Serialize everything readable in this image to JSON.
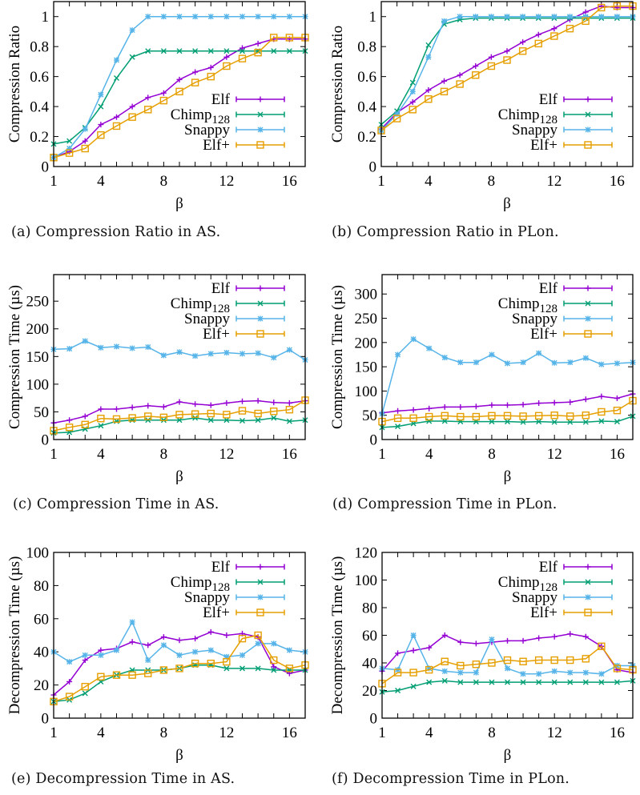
{
  "series_styles": [
    {
      "name": "Elf",
      "color": "#9400d3",
      "marker": "plus"
    },
    {
      "name": "Chimp128",
      "label_main": "Chimp",
      "label_sub": "128",
      "color": "#009e73",
      "marker": "cross"
    },
    {
      "name": "Snappy",
      "color": "#56b4e9",
      "marker": "star"
    },
    {
      "name": "Elf+",
      "color": "#e69f00",
      "marker": "square"
    }
  ],
  "chart_data": [
    {
      "id": "a",
      "type": "line",
      "caption": "(a) Compression Ratio in AS.",
      "title": "",
      "xlabel": "β",
      "ylabel": "Compression Ratio",
      "x": [
        1,
        2,
        3,
        4,
        5,
        6,
        7,
        8,
        9,
        10,
        11,
        12,
        13,
        14,
        15,
        16,
        17
      ],
      "xlim": [
        1,
        17
      ],
      "xticks": [
        1,
        4,
        8,
        12,
        16
      ],
      "ylim": [
        0,
        1.1
      ],
      "yticks": [
        0,
        0.2,
        0.4,
        0.6,
        0.8,
        1
      ],
      "ytick_labels": [
        "0",
        "0.2",
        "0.4",
        "0.6",
        "0.8",
        "1"
      ],
      "legend": "right-middle",
      "grid": false,
      "series": [
        {
          "name": "Elf",
          "values": [
            0.06,
            0.1,
            0.17,
            0.28,
            0.33,
            0.4,
            0.46,
            0.49,
            0.58,
            0.63,
            0.66,
            0.73,
            0.79,
            0.82,
            0.85,
            0.85,
            0.85
          ]
        },
        {
          "name": "Chimp128",
          "values": [
            0.15,
            0.17,
            0.26,
            0.4,
            0.59,
            0.73,
            0.77,
            0.77,
            0.77,
            0.77,
            0.77,
            0.77,
            0.77,
            0.77,
            0.77,
            0.77,
            0.77
          ]
        },
        {
          "name": "Snappy",
          "values": [
            0.06,
            0.12,
            0.25,
            0.48,
            0.71,
            0.91,
            1.0,
            1.0,
            1.0,
            1.0,
            1.0,
            1.0,
            1.0,
            1.0,
            1.0,
            1.0,
            1.0
          ]
        },
        {
          "name": "Elf+",
          "values": [
            0.06,
            0.09,
            0.12,
            0.21,
            0.27,
            0.33,
            0.38,
            0.44,
            0.5,
            0.56,
            0.6,
            0.67,
            0.72,
            0.76,
            0.86,
            0.86,
            0.86
          ]
        }
      ]
    },
    {
      "id": "b",
      "type": "line",
      "caption": "(b) Compression Ratio in PLon.",
      "title": "",
      "xlabel": "β",
      "ylabel": "Compression Ratio",
      "x": [
        1,
        2,
        3,
        4,
        5,
        6,
        7,
        8,
        9,
        10,
        11,
        12,
        13,
        14,
        15,
        16,
        17
      ],
      "xlim": [
        1,
        17
      ],
      "xticks": [
        1,
        4,
        8,
        12,
        16
      ],
      "ylim": [
        0,
        1.1
      ],
      "yticks": [
        0,
        0.2,
        0.4,
        0.6,
        0.8,
        1
      ],
      "ytick_labels": [
        "0",
        "0.2",
        "0.4",
        "0.6",
        "0.8",
        "1"
      ],
      "legend": "right-middle",
      "grid": false,
      "series": [
        {
          "name": "Elf",
          "values": [
            0.25,
            0.36,
            0.43,
            0.51,
            0.57,
            0.61,
            0.67,
            0.73,
            0.77,
            0.83,
            0.88,
            0.92,
            0.98,
            1.03,
            1.07,
            1.06,
            1.06
          ]
        },
        {
          "name": "Chimp128",
          "values": [
            0.28,
            0.37,
            0.56,
            0.81,
            0.95,
            0.98,
            0.99,
            0.99,
            0.99,
            0.99,
            0.99,
            0.99,
            0.99,
            0.99,
            0.99,
            0.99,
            0.99
          ]
        },
        {
          "name": "Snappy",
          "values": [
            0.24,
            0.35,
            0.5,
            0.73,
            0.97,
            1.0,
            1.0,
            1.0,
            1.0,
            1.0,
            1.0,
            1.0,
            1.0,
            1.0,
            1.0,
            1.0,
            1.0
          ]
        },
        {
          "name": "Elf+",
          "values": [
            0.24,
            0.32,
            0.38,
            0.45,
            0.5,
            0.55,
            0.61,
            0.67,
            0.71,
            0.77,
            0.82,
            0.87,
            0.92,
            0.97,
            1.06,
            1.07,
            1.07
          ]
        }
      ]
    },
    {
      "id": "c",
      "type": "line",
      "caption": "(c) Compression Time in AS.",
      "title": "",
      "xlabel": "β",
      "ylabel": "Compression Time (µs)",
      "x": [
        1,
        2,
        3,
        4,
        5,
        6,
        7,
        8,
        9,
        10,
        11,
        12,
        13,
        14,
        15,
        16,
        17
      ],
      "xlim": [
        1,
        17
      ],
      "xticks": [
        1,
        4,
        8,
        12,
        16
      ],
      "ylim": [
        0,
        298
      ],
      "yticks": [
        0,
        50,
        100,
        150,
        200,
        250
      ],
      "ytick_labels": [
        "0",
        "50",
        "100",
        "150",
        "200",
        "250"
      ],
      "legend": "top-right",
      "grid": false,
      "series": [
        {
          "name": "Elf",
          "values": [
            30,
            35,
            42,
            55,
            55,
            58,
            61,
            59,
            68,
            64,
            62,
            66,
            69,
            70,
            67,
            66,
            70
          ]
        },
        {
          "name": "Chimp128",
          "values": [
            12,
            13,
            19,
            25,
            33,
            35,
            35,
            35,
            35,
            39,
            35,
            35,
            34,
            35,
            39,
            33,
            35
          ]
        },
        {
          "name": "Snappy",
          "values": [
            163,
            164,
            178,
            166,
            168,
            165,
            167,
            152,
            158,
            151,
            155,
            157,
            155,
            156,
            148,
            162,
            144
          ]
        },
        {
          "name": "Elf+",
          "values": [
            16,
            22,
            27,
            38,
            37,
            39,
            42,
            40,
            45,
            46,
            47,
            45,
            52,
            47,
            51,
            54,
            71
          ]
        }
      ]
    },
    {
      "id": "d",
      "type": "line",
      "caption": "(d) Compression Time in PLon.",
      "title": "",
      "xlabel": "β",
      "ylabel": "Compression Time (µs)",
      "x": [
        1,
        2,
        3,
        4,
        5,
        6,
        7,
        8,
        9,
        10,
        11,
        12,
        13,
        14,
        15,
        16,
        17
      ],
      "xlim": [
        1,
        17
      ],
      "xticks": [
        1,
        4,
        8,
        12,
        16
      ],
      "ylim": [
        0,
        340
      ],
      "yticks": [
        0,
        50,
        100,
        150,
        200,
        250,
        300
      ],
      "ytick_labels": [
        "0",
        "50",
        "100",
        "150",
        "200",
        "250",
        "300"
      ],
      "legend": "top-right",
      "grid": false,
      "series": [
        {
          "name": "Elf",
          "values": [
            55,
            59,
            61,
            64,
            67,
            67,
            68,
            71,
            71,
            72,
            75,
            76,
            77,
            83,
            89,
            85,
            94
          ]
        },
        {
          "name": "Chimp128",
          "values": [
            25,
            27,
            33,
            38,
            38,
            37,
            37,
            37,
            37,
            36,
            37,
            36,
            36,
            36,
            38,
            37,
            48
          ]
        },
        {
          "name": "Snappy",
          "values": [
            53,
            175,
            207,
            188,
            169,
            159,
            159,
            175,
            157,
            159,
            178,
            158,
            159,
            168,
            155,
            157,
            159
          ]
        },
        {
          "name": "Elf+",
          "values": [
            37,
            44,
            44,
            47,
            49,
            47,
            47,
            49,
            49,
            48,
            49,
            50,
            48,
            50,
            57,
            60,
            80
          ]
        }
      ]
    },
    {
      "id": "e",
      "type": "line",
      "caption": "(e) Decompression Time in AS.",
      "title": "",
      "xlabel": "β",
      "ylabel": "Decompression Time (µs)",
      "x": [
        1,
        2,
        3,
        4,
        5,
        6,
        7,
        8,
        9,
        10,
        11,
        12,
        13,
        14,
        15,
        16,
        17
      ],
      "xlim": [
        1,
        17
      ],
      "xticks": [
        1,
        4,
        8,
        12,
        16
      ],
      "ylim": [
        0,
        100
      ],
      "yticks": [
        0,
        20,
        40,
        60,
        80,
        100
      ],
      "ytick_labels": [
        "0",
        "20",
        "40",
        "60",
        "80",
        "100"
      ],
      "legend": "top-right",
      "grid": false,
      "series": [
        {
          "name": "Elf",
          "values": [
            14,
            22,
            35,
            41,
            42,
            46,
            44,
            49,
            47,
            48,
            52,
            50,
            51,
            49,
            31,
            27,
            29
          ]
        },
        {
          "name": "Chimp128",
          "values": [
            10,
            11,
            15,
            22,
            26,
            29,
            29,
            29,
            30,
            32,
            32,
            30,
            30,
            30,
            29,
            29,
            29
          ]
        },
        {
          "name": "Snappy",
          "values": [
            40,
            34,
            38,
            38,
            41,
            58,
            35,
            44,
            38,
            40,
            41,
            37,
            38,
            45,
            45,
            41,
            40
          ]
        },
        {
          "name": "Elf+",
          "values": [
            10,
            13,
            19,
            25,
            26,
            26,
            27,
            29,
            30,
            33,
            33,
            34,
            48,
            50,
            35,
            30,
            32
          ]
        }
      ]
    },
    {
      "id": "f",
      "type": "line",
      "caption": "(f) Decompression Time in PLon.",
      "title": "",
      "xlabel": "β",
      "ylabel": "Decompression Time (µs)",
      "x": [
        1,
        2,
        3,
        4,
        5,
        6,
        7,
        8,
        9,
        10,
        11,
        12,
        13,
        14,
        15,
        16,
        17
      ],
      "xlim": [
        1,
        17
      ],
      "xticks": [
        1,
        4,
        8,
        12,
        16
      ],
      "ylim": [
        0,
        120
      ],
      "yticks": [
        0,
        20,
        40,
        60,
        80,
        100,
        120
      ],
      "ytick_labels": [
        "0",
        "20",
        "40",
        "60",
        "80",
        "100",
        "120"
      ],
      "legend": "top-right",
      "grid": false,
      "series": [
        {
          "name": "Elf",
          "values": [
            34,
            47,
            49,
            51,
            60,
            55,
            54,
            55,
            56,
            56,
            58,
            59,
            61,
            59,
            52,
            35,
            33
          ]
        },
        {
          "name": "Chimp128",
          "values": [
            19,
            20,
            23,
            26,
            27,
            26,
            26,
            26,
            26,
            26,
            26,
            26,
            26,
            26,
            26,
            26,
            27
          ]
        },
        {
          "name": "Snappy",
          "values": [
            36,
            35,
            60,
            36,
            34,
            33,
            33,
            57,
            36,
            32,
            32,
            34,
            33,
            33,
            32,
            38,
            38
          ]
        },
        {
          "name": "Elf+",
          "values": [
            25,
            33,
            33,
            35,
            41,
            38,
            39,
            40,
            42,
            41,
            42,
            42,
            42,
            43,
            52,
            36,
            35
          ]
        }
      ]
    }
  ]
}
